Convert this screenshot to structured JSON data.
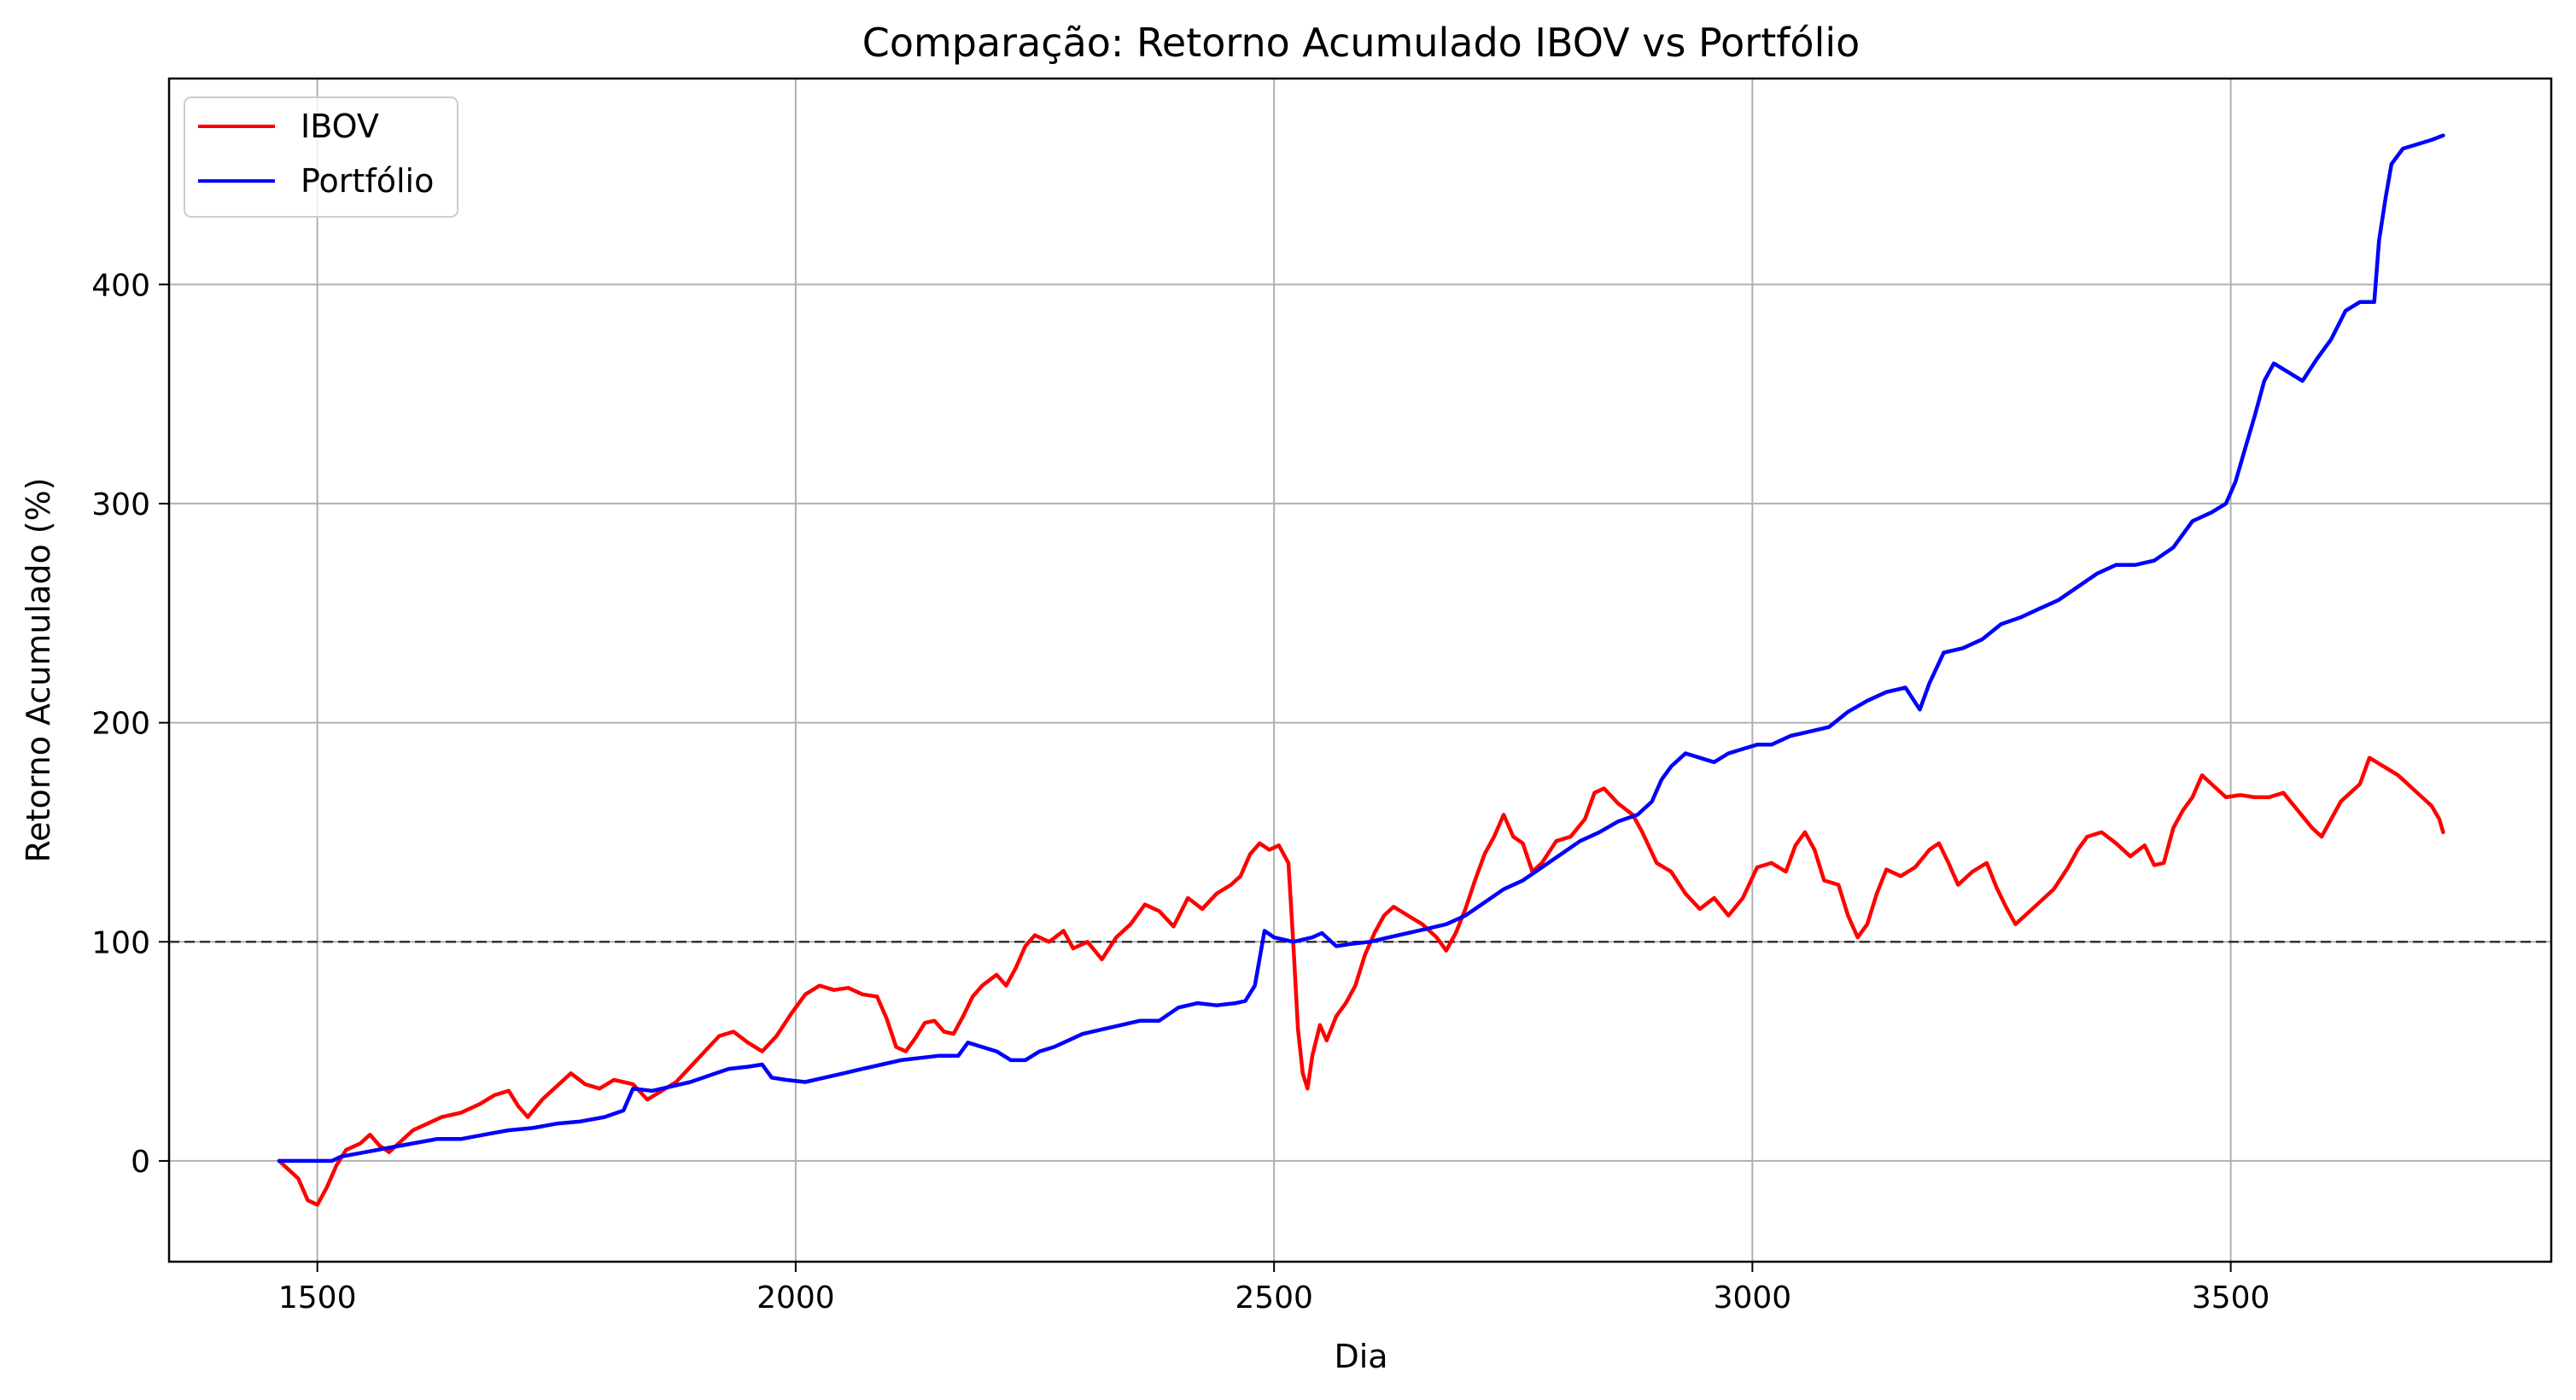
{
  "chart_data": {
    "type": "line",
    "title": "Comparação: Retorno Acumulado IBOV vs Portfólio",
    "xlabel": "Dia",
    "ylabel": "Retorno Acumulado (%)",
    "xlim": [
      1345,
      3835
    ],
    "ylim": [
      -46,
      494
    ],
    "x_ticks": [
      1500,
      2000,
      2500,
      3000,
      3500
    ],
    "y_ticks": [
      0,
      100,
      200,
      300,
      400
    ],
    "grid": true,
    "legend_position": "top-left",
    "reference_line": {
      "y": 100,
      "style": "dashed",
      "color": "#333333"
    },
    "series": [
      {
        "name": "IBOV",
        "color": "#ff0000",
        "points": [
          [
            1460,
            0
          ],
          [
            1470,
            -4
          ],
          [
            1480,
            -8
          ],
          [
            1490,
            -18
          ],
          [
            1500,
            -20
          ],
          [
            1510,
            -12
          ],
          [
            1520,
            -2
          ],
          [
            1530,
            5
          ],
          [
            1545,
            8
          ],
          [
            1555,
            12
          ],
          [
            1565,
            7
          ],
          [
            1575,
            4
          ],
          [
            1585,
            8
          ],
          [
            1600,
            14
          ],
          [
            1615,
            17
          ],
          [
            1630,
            20
          ],
          [
            1650,
            22
          ],
          [
            1670,
            26
          ],
          [
            1685,
            30
          ],
          [
            1700,
            32
          ],
          [
            1710,
            25
          ],
          [
            1720,
            20
          ],
          [
            1735,
            28
          ],
          [
            1750,
            34
          ],
          [
            1765,
            40
          ],
          [
            1780,
            35
          ],
          [
            1795,
            33
          ],
          [
            1810,
            37
          ],
          [
            1830,
            35
          ],
          [
            1845,
            28
          ],
          [
            1860,
            32
          ],
          [
            1875,
            36
          ],
          [
            1890,
            43
          ],
          [
            1905,
            50
          ],
          [
            1920,
            57
          ],
          [
            1935,
            59
          ],
          [
            1950,
            54
          ],
          [
            1965,
            50
          ],
          [
            1980,
            57
          ],
          [
            1995,
            67
          ],
          [
            2010,
            76
          ],
          [
            2025,
            80
          ],
          [
            2040,
            78
          ],
          [
            2055,
            79
          ],
          [
            2070,
            76
          ],
          [
            2085,
            75
          ],
          [
            2095,
            65
          ],
          [
            2105,
            52
          ],
          [
            2115,
            50
          ],
          [
            2125,
            56
          ],
          [
            2135,
            63
          ],
          [
            2145,
            64
          ],
          [
            2155,
            59
          ],
          [
            2165,
            58
          ],
          [
            2175,
            66
          ],
          [
            2185,
            75
          ],
          [
            2195,
            80
          ],
          [
            2210,
            85
          ],
          [
            2220,
            80
          ],
          [
            2230,
            88
          ],
          [
            2240,
            98
          ],
          [
            2250,
            103
          ],
          [
            2265,
            100
          ],
          [
            2280,
            105
          ],
          [
            2290,
            97
          ],
          [
            2305,
            100
          ],
          [
            2320,
            92
          ],
          [
            2335,
            102
          ],
          [
            2350,
            108
          ],
          [
            2365,
            117
          ],
          [
            2380,
            114
          ],
          [
            2395,
            107
          ],
          [
            2410,
            120
          ],
          [
            2425,
            115
          ],
          [
            2440,
            122
          ],
          [
            2455,
            126
          ],
          [
            2465,
            130
          ],
          [
            2475,
            140
          ],
          [
            2485,
            145
          ],
          [
            2495,
            142
          ],
          [
            2505,
            144
          ],
          [
            2515,
            136
          ],
          [
            2520,
            100
          ],
          [
            2525,
            60
          ],
          [
            2530,
            40
          ],
          [
            2535,
            33
          ],
          [
            2540,
            48
          ],
          [
            2548,
            62
          ],
          [
            2555,
            55
          ],
          [
            2565,
            66
          ],
          [
            2575,
            72
          ],
          [
            2585,
            80
          ],
          [
            2595,
            94
          ],
          [
            2605,
            104
          ],
          [
            2615,
            112
          ],
          [
            2625,
            116
          ],
          [
            2640,
            112
          ],
          [
            2655,
            108
          ],
          [
            2670,
            102
          ],
          [
            2680,
            96
          ],
          [
            2690,
            104
          ],
          [
            2700,
            115
          ],
          [
            2710,
            128
          ],
          [
            2720,
            140
          ],
          [
            2730,
            148
          ],
          [
            2740,
            158
          ],
          [
            2750,
            148
          ],
          [
            2760,
            145
          ],
          [
            2770,
            132
          ],
          [
            2780,
            136
          ],
          [
            2795,
            146
          ],
          [
            2810,
            148
          ],
          [
            2825,
            156
          ],
          [
            2835,
            168
          ],
          [
            2845,
            170
          ],
          [
            2860,
            163
          ],
          [
            2875,
            158
          ],
          [
            2885,
            150
          ],
          [
            2900,
            136
          ],
          [
            2915,
            132
          ],
          [
            2930,
            122
          ],
          [
            2945,
            115
          ],
          [
            2960,
            120
          ],
          [
            2975,
            112
          ],
          [
            2990,
            120
          ],
          [
            3005,
            134
          ],
          [
            3020,
            136
          ],
          [
            3035,
            132
          ],
          [
            3045,
            144
          ],
          [
            3055,
            150
          ],
          [
            3065,
            142
          ],
          [
            3075,
            128
          ],
          [
            3090,
            126
          ],
          [
            3100,
            112
          ],
          [
            3110,
            102
          ],
          [
            3120,
            108
          ],
          [
            3130,
            122
          ],
          [
            3140,
            133
          ],
          [
            3155,
            130
          ],
          [
            3170,
            134
          ],
          [
            3185,
            142
          ],
          [
            3195,
            145
          ],
          [
            3205,
            136
          ],
          [
            3215,
            126
          ],
          [
            3230,
            132
          ],
          [
            3245,
            136
          ],
          [
            3255,
            125
          ],
          [
            3265,
            116
          ],
          [
            3275,
            108
          ],
          [
            3285,
            112
          ],
          [
            3300,
            118
          ],
          [
            3315,
            124
          ],
          [
            3330,
            134
          ],
          [
            3340,
            142
          ],
          [
            3350,
            148
          ],
          [
            3365,
            150
          ],
          [
            3380,
            145
          ],
          [
            3395,
            139
          ],
          [
            3410,
            144
          ],
          [
            3420,
            135
          ],
          [
            3430,
            136
          ],
          [
            3440,
            152
          ],
          [
            3450,
            160
          ],
          [
            3460,
            166
          ],
          [
            3470,
            176
          ],
          [
            3480,
            172
          ],
          [
            3495,
            166
          ],
          [
            3510,
            167
          ],
          [
            3525,
            166
          ],
          [
            3540,
            166
          ],
          [
            3555,
            168
          ],
          [
            3570,
            160
          ],
          [
            3585,
            152
          ],
          [
            3595,
            148
          ],
          [
            3605,
            156
          ],
          [
            3615,
            164
          ],
          [
            3625,
            168
          ],
          [
            3635,
            172
          ],
          [
            3645,
            184
          ],
          [
            3660,
            180
          ],
          [
            3675,
            176
          ],
          [
            3690,
            170
          ],
          [
            3700,
            166
          ],
          [
            3710,
            162
          ],
          [
            3718,
            156
          ],
          [
            3722,
            150
          ]
        ]
      },
      {
        "name": "Portfólio",
        "color": "#0000ff",
        "points": [
          [
            1460,
            0
          ],
          [
            1480,
            0
          ],
          [
            1500,
            0
          ],
          [
            1515,
            0
          ],
          [
            1525,
            2
          ],
          [
            1550,
            4
          ],
          [
            1575,
            6
          ],
          [
            1600,
            8
          ],
          [
            1625,
            10
          ],
          [
            1650,
            10
          ],
          [
            1675,
            12
          ],
          [
            1700,
            14
          ],
          [
            1725,
            15
          ],
          [
            1750,
            17
          ],
          [
            1775,
            18
          ],
          [
            1800,
            20
          ],
          [
            1820,
            23
          ],
          [
            1830,
            33
          ],
          [
            1850,
            32
          ],
          [
            1870,
            34
          ],
          [
            1890,
            36
          ],
          [
            1910,
            39
          ],
          [
            1930,
            42
          ],
          [
            1950,
            43
          ],
          [
            1965,
            44
          ],
          [
            1975,
            38
          ],
          [
            1990,
            37
          ],
          [
            2010,
            36
          ],
          [
            2030,
            38
          ],
          [
            2050,
            40
          ],
          [
            2070,
            42
          ],
          [
            2090,
            44
          ],
          [
            2110,
            46
          ],
          [
            2130,
            47
          ],
          [
            2150,
            48
          ],
          [
            2170,
            48
          ],
          [
            2180,
            54
          ],
          [
            2195,
            52
          ],
          [
            2210,
            50
          ],
          [
            2225,
            46
          ],
          [
            2240,
            46
          ],
          [
            2255,
            50
          ],
          [
            2270,
            52
          ],
          [
            2285,
            55
          ],
          [
            2300,
            58
          ],
          [
            2320,
            60
          ],
          [
            2340,
            62
          ],
          [
            2360,
            64
          ],
          [
            2380,
            64
          ],
          [
            2400,
            70
          ],
          [
            2420,
            72
          ],
          [
            2440,
            71
          ],
          [
            2460,
            72
          ],
          [
            2470,
            73
          ],
          [
            2480,
            80
          ],
          [
            2490,
            105
          ],
          [
            2500,
            102
          ],
          [
            2520,
            100
          ],
          [
            2540,
            102
          ],
          [
            2550,
            104
          ],
          [
            2565,
            98
          ],
          [
            2580,
            99
          ],
          [
            2600,
            100
          ],
          [
            2620,
            102
          ],
          [
            2640,
            104
          ],
          [
            2660,
            106
          ],
          [
            2680,
            108
          ],
          [
            2700,
            112
          ],
          [
            2720,
            118
          ],
          [
            2740,
            124
          ],
          [
            2760,
            128
          ],
          [
            2780,
            134
          ],
          [
            2800,
            140
          ],
          [
            2820,
            146
          ],
          [
            2840,
            150
          ],
          [
            2860,
            155
          ],
          [
            2880,
            158
          ],
          [
            2895,
            164
          ],
          [
            2905,
            174
          ],
          [
            2915,
            180
          ],
          [
            2930,
            186
          ],
          [
            2945,
            184
          ],
          [
            2960,
            182
          ],
          [
            2975,
            186
          ],
          [
            2990,
            188
          ],
          [
            3005,
            190
          ],
          [
            3020,
            190
          ],
          [
            3040,
            194
          ],
          [
            3060,
            196
          ],
          [
            3080,
            198
          ],
          [
            3100,
            205
          ],
          [
            3120,
            210
          ],
          [
            3140,
            214
          ],
          [
            3160,
            216
          ],
          [
            3175,
            206
          ],
          [
            3185,
            218
          ],
          [
            3200,
            232
          ],
          [
            3220,
            234
          ],
          [
            3240,
            238
          ],
          [
            3260,
            245
          ],
          [
            3280,
            248
          ],
          [
            3300,
            252
          ],
          [
            3320,
            256
          ],
          [
            3340,
            262
          ],
          [
            3360,
            268
          ],
          [
            3380,
            272
          ],
          [
            3400,
            272
          ],
          [
            3420,
            274
          ],
          [
            3440,
            280
          ],
          [
            3460,
            292
          ],
          [
            3480,
            296
          ],
          [
            3495,
            300
          ],
          [
            3505,
            310
          ],
          [
            3515,
            325
          ],
          [
            3525,
            340
          ],
          [
            3535,
            356
          ],
          [
            3545,
            364
          ],
          [
            3560,
            360
          ],
          [
            3575,
            356
          ],
          [
            3590,
            366
          ],
          [
            3605,
            375
          ],
          [
            3620,
            388
          ],
          [
            3635,
            392
          ],
          [
            3650,
            392
          ],
          [
            3655,
            420
          ],
          [
            3662,
            440
          ],
          [
            3668,
            455
          ],
          [
            3680,
            462
          ],
          [
            3695,
            464
          ],
          [
            3710,
            466
          ],
          [
            3722,
            468
          ]
        ]
      }
    ]
  }
}
